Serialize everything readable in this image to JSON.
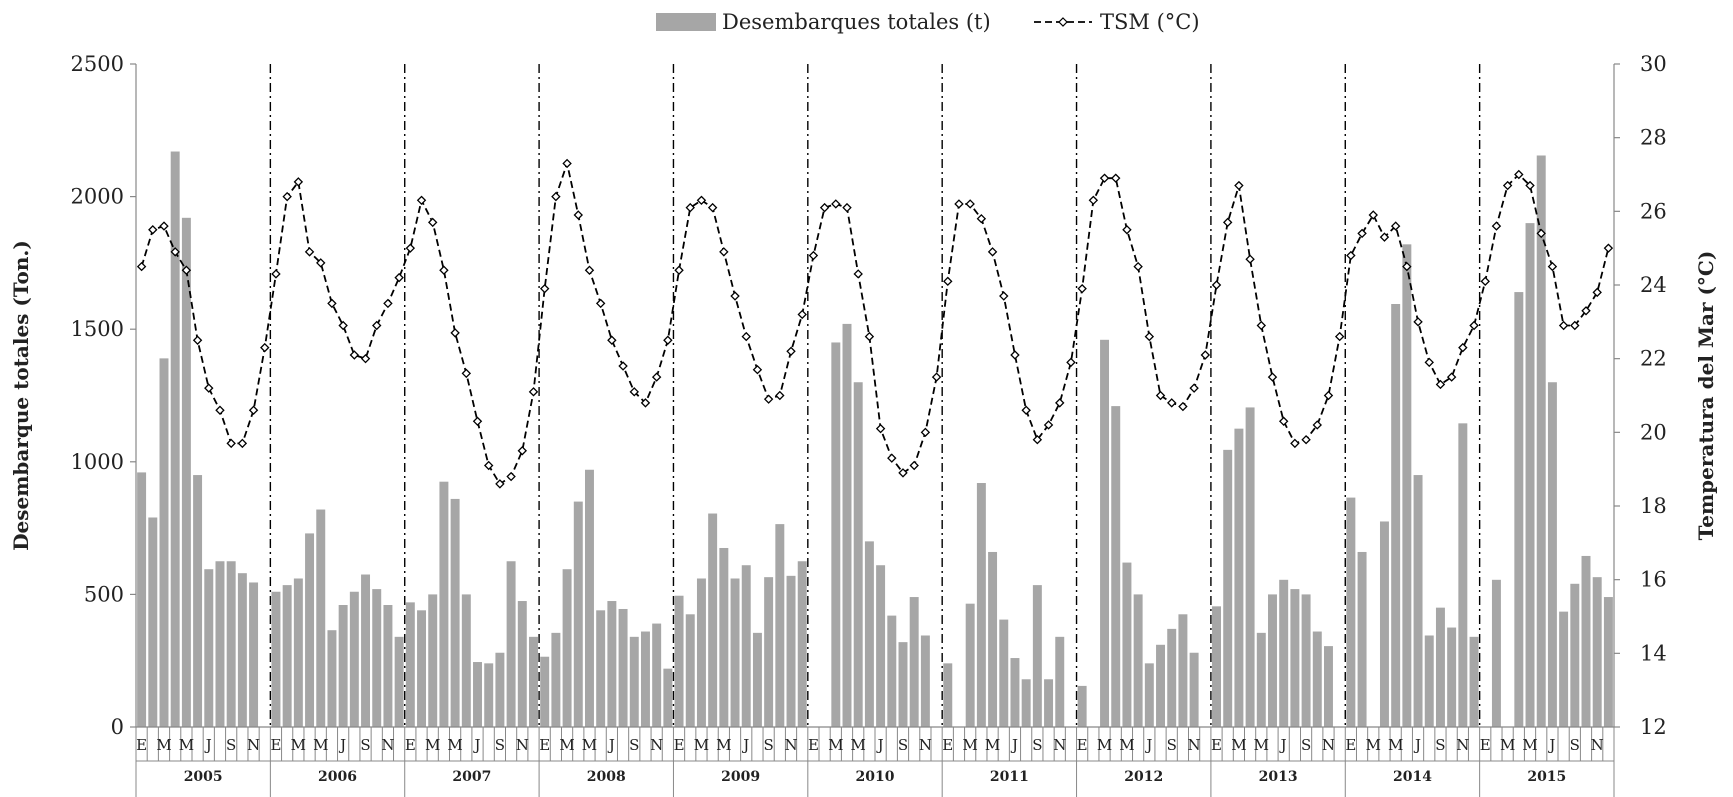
{
  "chart_data": {
    "type": "bar+line",
    "legend": {
      "placement": "top-center",
      "entries": [
        "Desembarques totales (t)",
        "TSM (°C)"
      ]
    },
    "xlabel": "",
    "ylabel_left": "Desembarque totales (Ton.)",
    "ylabel_right": "Temperatura del Mar (°C)",
    "ylim_left": [
      0,
      2500
    ],
    "ylim_right": [
      12,
      30
    ],
    "yticks_left": [
      "0",
      "500",
      "1000",
      "1500",
      "2000",
      "2500"
    ],
    "yticks_right": [
      "12",
      "14",
      "16",
      "18",
      "20",
      "22",
      "24",
      "26",
      "28",
      "30"
    ],
    "month_labels": [
      "E",
      "",
      "M",
      "",
      "M",
      "",
      "J",
      "",
      "S",
      "",
      "N",
      ""
    ],
    "years": [
      "2005",
      "2006",
      "2007",
      "2008",
      "2009",
      "2010",
      "2011",
      "2012",
      "2013",
      "2014",
      "2015"
    ],
    "colors": {
      "bars": "#a6a6a6",
      "line": "#000000",
      "axis": "#888888"
    },
    "series": [
      {
        "name": "Desembarques totales (t)",
        "type": "bar",
        "axis": "left",
        "values": [
          960,
          790,
          1390,
          2170,
          1920,
          950,
          595,
          625,
          625,
          580,
          545,
          0,
          510,
          535,
          560,
          730,
          820,
          365,
          460,
          510,
          575,
          520,
          460,
          340,
          470,
          440,
          500,
          925,
          860,
          500,
          245,
          240,
          280,
          625,
          475,
          340,
          265,
          355,
          595,
          850,
          970,
          440,
          475,
          445,
          340,
          360,
          390,
          220,
          495,
          425,
          560,
          805,
          675,
          560,
          610,
          355,
          565,
          765,
          570,
          625,
          0,
          0,
          1450,
          1520,
          1300,
          700,
          610,
          420,
          320,
          490,
          345,
          0,
          240,
          0,
          465,
          920,
          660,
          405,
          260,
          180,
          535,
          180,
          340,
          0,
          155,
          0,
          1460,
          1210,
          620,
          500,
          240,
          310,
          370,
          425,
          280,
          0,
          455,
          1045,
          1125,
          1205,
          355,
          500,
          555,
          520,
          500,
          360,
          305,
          0,
          865,
          660,
          0,
          775,
          1595,
          1820,
          950,
          345,
          450,
          375,
          1145,
          340,
          0,
          555,
          0,
          1640,
          1900,
          2155,
          1300,
          435,
          540,
          645,
          565,
          490
        ]
      },
      {
        "name": "TSM (°C)",
        "type": "line",
        "axis": "right",
        "values": [
          24.5,
          25.5,
          25.6,
          24.9,
          24.4,
          22.5,
          21.2,
          20.6,
          19.7,
          19.7,
          20.6,
          22.3,
          24.3,
          26.4,
          26.8,
          24.9,
          24.6,
          23.5,
          22.9,
          22.1,
          22.0,
          22.9,
          23.5,
          24.2,
          25.0,
          26.3,
          25.7,
          24.4,
          22.7,
          21.6,
          20.3,
          19.1,
          18.6,
          18.8,
          19.5,
          21.1,
          23.9,
          26.4,
          27.3,
          25.9,
          24.4,
          23.5,
          22.5,
          21.8,
          21.1,
          20.8,
          21.5,
          22.5,
          24.4,
          26.1,
          26.3,
          26.1,
          24.9,
          23.7,
          22.6,
          21.7,
          20.9,
          21.0,
          22.2,
          23.2,
          24.8,
          26.1,
          26.2,
          26.1,
          24.3,
          22.6,
          20.1,
          19.3,
          18.9,
          19.1,
          20.0,
          21.5,
          24.1,
          26.2,
          26.2,
          25.8,
          24.9,
          23.7,
          22.1,
          20.6,
          19.8,
          20.2,
          20.8,
          21.9,
          23.9,
          26.3,
          26.9,
          26.9,
          25.5,
          24.5,
          22.6,
          21.0,
          20.8,
          20.7,
          21.2,
          22.1,
          24.0,
          25.7,
          26.7,
          24.7,
          22.9,
          21.5,
          20.3,
          19.7,
          19.8,
          20.2,
          21.0,
          22.6,
          24.8,
          25.4,
          25.9,
          25.3,
          25.6,
          24.5,
          23.0,
          21.9,
          21.3,
          21.5,
          22.3,
          22.9,
          24.1,
          25.6,
          26.7,
          27.0,
          26.7,
          25.4,
          24.5,
          22.9,
          22.9,
          23.3,
          23.8,
          25.0
        ]
      }
    ]
  }
}
